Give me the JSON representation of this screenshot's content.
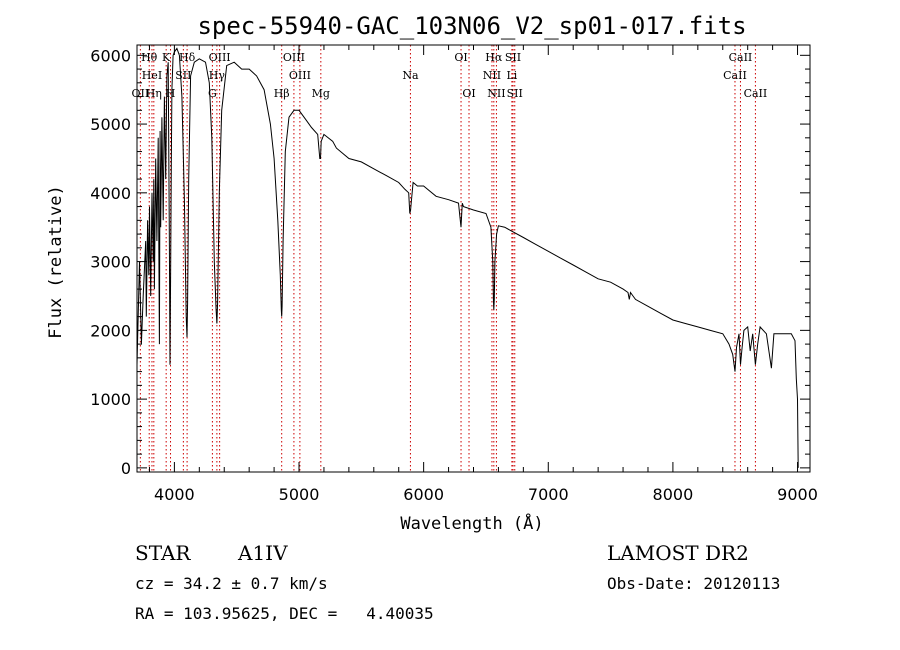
{
  "title": "spec-55940-GAC_103N06_V2_sp01-017.fits",
  "chart_data": {
    "type": "line",
    "xlabel": "Wavelength (Å)",
    "ylabel": "Flux (relative)",
    "xlim": [
      3700,
      9100
    ],
    "ylim": [
      -60,
      6150
    ],
    "x_ticks": [
      4000,
      5000,
      6000,
      7000,
      8000,
      9000
    ],
    "y_ticks": [
      0,
      1000,
      2000,
      3000,
      4000,
      5000,
      6000
    ],
    "grid": false,
    "line_color": "#000000",
    "marker_color": "#cc0000",
    "series": [
      {
        "x": [
          3700,
          3720,
          3735,
          3750,
          3770,
          3775,
          3785,
          3795,
          3800,
          3810,
          3820,
          3830,
          3835,
          3840,
          3850,
          3860,
          3870,
          3880,
          3885,
          3890,
          3900,
          3910,
          3920,
          3930,
          3940,
          3950,
          3960,
          3965,
          3970,
          3975,
          3980,
          3990,
          4000,
          4020,
          4040,
          4060,
          4080,
          4095,
          4101,
          4106,
          4115,
          4130,
          4160,
          4200,
          4250,
          4280,
          4300,
          4320,
          4335,
          4341,
          4347,
          4360,
          4380,
          4420,
          4480,
          4540,
          4600,
          4660,
          4720,
          4770,
          4800,
          4830,
          4850,
          4858,
          4861,
          4864,
          4872,
          4890,
          4920,
          4960,
          5000,
          5060,
          5100,
          5150,
          5167,
          5172,
          5178,
          5200,
          5270,
          5300,
          5400,
          5500,
          5600,
          5700,
          5800,
          5850,
          5880,
          5889,
          5895,
          5900,
          5915,
          5950,
          6000,
          6100,
          6200,
          6280,
          6300,
          6310,
          6320,
          6400,
          6500,
          6540,
          6555,
          6560,
          6563,
          6567,
          6572,
          6585,
          6600,
          6650,
          6700,
          6800,
          6900,
          7000,
          7100,
          7200,
          7300,
          7400,
          7500,
          7600,
          7640,
          7650,
          7660,
          7680,
          7700,
          7800,
          7900,
          8000,
          8100,
          8200,
          8300,
          8400,
          8450,
          8480,
          8498,
          8510,
          8530,
          8542,
          8555,
          8570,
          8600,
          8620,
          8640,
          8662,
          8680,
          8700,
          8750,
          8790,
          8810,
          8850,
          8900,
          8950,
          8980,
          8990,
          9000,
          9005
        ],
        "y": [
          1500,
          3000,
          1800,
          2500,
          3300,
          2200,
          3600,
          2800,
          3800,
          2500,
          4000,
          3000,
          4200,
          2600,
          4500,
          3300,
          4800,
          1800,
          4900,
          3500,
          5100,
          3600,
          5400,
          4200,
          5700,
          5900,
          3200,
          1500,
          3000,
          4400,
          5500,
          6000,
          6050,
          6100,
          6000,
          5400,
          3900,
          2200,
          1900,
          2400,
          4200,
          5700,
          5900,
          5950,
          5900,
          5600,
          4800,
          3000,
          2300,
          2100,
          2400,
          4000,
          5200,
          5850,
          5900,
          5800,
          5800,
          5700,
          5500,
          5000,
          4500,
          3600,
          2800,
          2300,
          2200,
          2350,
          3300,
          4600,
          5100,
          5200,
          5200,
          5050,
          4950,
          4850,
          4500,
          4500,
          4750,
          4850,
          4750,
          4650,
          4500,
          4450,
          4350,
          4250,
          4150,
          4050,
          4000,
          3700,
          3750,
          3850,
          4150,
          4100,
          4100,
          3950,
          3900,
          3850,
          3500,
          3850,
          3800,
          3750,
          3700,
          3500,
          3000,
          2450,
          2300,
          2450,
          3000,
          3400,
          3520,
          3500,
          3450,
          3350,
          3250,
          3150,
          3050,
          2950,
          2850,
          2750,
          2700,
          2600,
          2550,
          2450,
          2550,
          2500,
          2450,
          2350,
          2250,
          2150,
          2100,
          2050,
          2000,
          1950,
          1800,
          1650,
          1400,
          1750,
          1950,
          1500,
          1750,
          2000,
          2050,
          1700,
          1950,
          1500,
          1800,
          2050,
          1950,
          1450,
          1950,
          1950,
          1950,
          1950,
          1850,
          1300,
          1000,
          0
        ]
      }
    ],
    "spectral_lines": [
      {
        "label": "OII",
        "x": 3727,
        "row": 2
      },
      {
        "label": "Hθ",
        "x": 3798,
        "row": 0
      },
      {
        "label": "HeI",
        "x": 3820,
        "row": 1
      },
      {
        "label": "Hη",
        "x": 3835,
        "row": 2
      },
      {
        "label": "K",
        "x": 3934,
        "row": 0
      },
      {
        "label": "SII",
        "x": 4072,
        "row": 1
      },
      {
        "label": "H",
        "x": 3969,
        "row": 2
      },
      {
        "label": "Hδ",
        "x": 4102,
        "row": 0
      },
      {
        "label": "Hγ",
        "x": 4341,
        "row": 1
      },
      {
        "label": "G",
        "x": 4305,
        "row": 2
      },
      {
        "label": "OIII",
        "x": 4363,
        "row": 0
      },
      {
        "label": "Hβ",
        "x": 4861,
        "row": 2
      },
      {
        "label": "OIII",
        "x": 4959,
        "row": 0
      },
      {
        "label": "OIII",
        "x": 5007,
        "row": 1
      },
      {
        "label": "Mg",
        "x": 5175,
        "row": 2
      },
      {
        "label": "Na",
        "x": 5894,
        "row": 1
      },
      {
        "label": "OI",
        "x": 6300,
        "row": 0
      },
      {
        "label": "OI",
        "x": 6364,
        "row": 2
      },
      {
        "label": "Hα",
        "x": 6563,
        "row": 0
      },
      {
        "label": "NII",
        "x": 6548,
        "row": 1
      },
      {
        "label": "NII",
        "x": 6584,
        "row": 2
      },
      {
        "label": "SII",
        "x": 6717,
        "row": 0
      },
      {
        "label": "Li",
        "x": 6708,
        "row": 1
      },
      {
        "label": "SII",
        "x": 6731,
        "row": 2
      },
      {
        "label": "CaII",
        "x": 8542,
        "row": 0
      },
      {
        "label": "CaII",
        "x": 8498,
        "row": 1
      },
      {
        "label": "CaII",
        "x": 8662,
        "row": 2
      }
    ]
  },
  "info": {
    "star_type": "STAR",
    "subclass": "A1IV",
    "survey": "LAMOST DR2",
    "velocity": "cz = 34.2 ± 0.7 km/s",
    "obs_date": "Obs-Date: 20120113",
    "coords": "RA = 103.95625, DEC =   4.40035"
  }
}
